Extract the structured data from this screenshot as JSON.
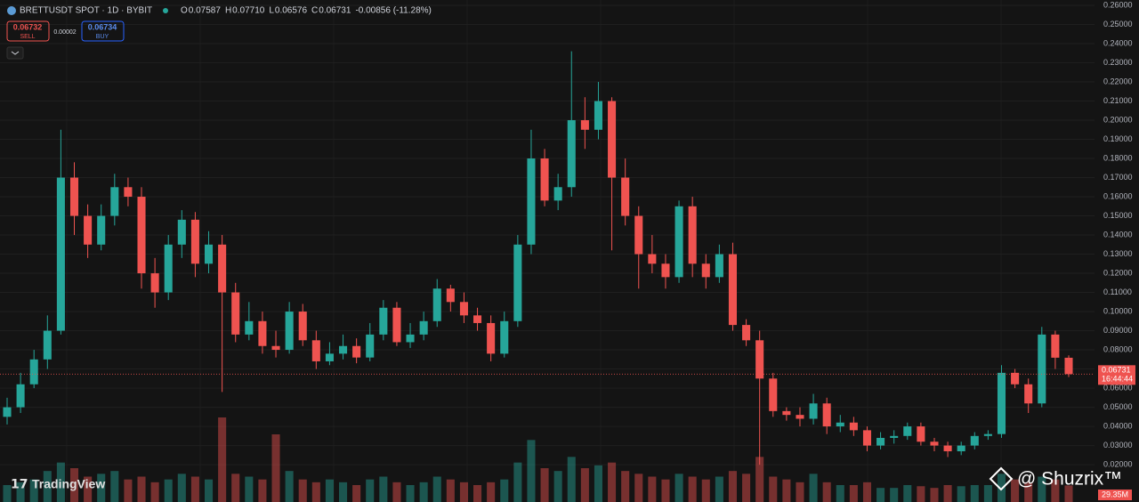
{
  "header": {
    "symbol": "BRETTUSDT SPOT · 1D · BYBIT",
    "ohlc": [
      {
        "k": "O",
        "v": "0.07587"
      },
      {
        "k": "H",
        "v": "0.07710"
      },
      {
        "k": "L",
        "v": "0.06576"
      },
      {
        "k": "C",
        "v": "0.06731"
      }
    ],
    "change": "-0.00856 (-11.28%)"
  },
  "trade": {
    "sell_price": "0.06732",
    "sell": "SELL",
    "spread": "0.00002",
    "buy_price": "0.06734",
    "buy": "BUY"
  },
  "countdown": "16:44:44",
  "watermark": "TradingView",
  "credit": "@ Shuzrix™",
  "chart_data": {
    "type": "candlestick",
    "up_color": "#26a69a",
    "down_color": "#ef5350",
    "ylim": [
      0.0005,
      0.2628
    ],
    "yticks": [
      {
        "value": 0.02,
        "label": "0.02000"
      },
      {
        "value": 0.03,
        "label": "0.03000"
      },
      {
        "value": 0.04,
        "label": "0.04000"
      },
      {
        "value": 0.05,
        "label": "0.05000"
      },
      {
        "value": 0.06,
        "label": "0.06000"
      },
      {
        "value": 0.07,
        "label": "0.07000"
      },
      {
        "value": 0.08,
        "label": "0.08000"
      },
      {
        "value": 0.09,
        "label": "0.09000"
      },
      {
        "value": 0.1,
        "label": "0.10000"
      },
      {
        "value": 0.11,
        "label": "0.11000"
      },
      {
        "value": 0.12,
        "label": "0.12000"
      },
      {
        "value": 0.13,
        "label": "0.13000"
      },
      {
        "value": 0.14,
        "label": "0.14000"
      },
      {
        "value": 0.15,
        "label": "0.15000"
      },
      {
        "value": 0.16,
        "label": "0.16000"
      },
      {
        "value": 0.17,
        "label": "0.17000"
      },
      {
        "value": 0.18,
        "label": "0.18000"
      },
      {
        "value": 0.19,
        "label": "0.19000"
      },
      {
        "value": 0.2,
        "label": "0.20000"
      },
      {
        "value": 0.21,
        "label": "0.21000"
      },
      {
        "value": 0.22,
        "label": "0.22000"
      },
      {
        "value": 0.23,
        "label": "0.23000"
      },
      {
        "value": 0.24,
        "label": "0.24000"
      },
      {
        "value": 0.25,
        "label": "0.25000"
      },
      {
        "value": 0.26,
        "label": "0.26000"
      }
    ],
    "grid": true,
    "open": [
      0.045,
      0.05,
      0.062,
      0.075,
      0.09,
      0.17,
      0.15,
      0.135,
      0.15,
      0.165,
      0.16,
      0.12,
      0.11,
      0.135,
      0.148,
      0.125,
      0.135,
      0.11,
      0.088,
      0.095,
      0.082,
      0.08,
      0.1,
      0.085,
      0.074,
      0.078,
      0.082,
      0.076,
      0.088,
      0.102,
      0.084,
      0.088,
      0.095,
      0.112,
      0.105,
      0.098,
      0.094,
      0.078,
      0.095,
      0.135,
      0.18,
      0.158,
      0.165,
      0.2,
      0.195,
      0.21,
      0.17,
      0.15,
      0.13,
      0.125,
      0.118,
      0.155,
      0.125,
      0.118,
      0.13,
      0.093,
      0.085,
      0.065,
      0.048,
      0.046,
      0.044,
      0.052,
      0.04,
      0.042,
      0.038,
      0.03,
      0.034,
      0.035,
      0.04,
      0.032,
      0.03,
      0.027,
      0.03,
      0.035,
      0.036,
      0.068,
      0.062,
      0.052,
      0.088,
      0.07587
    ],
    "high": [
      0.055,
      0.068,
      0.08,
      0.098,
      0.195,
      0.178,
      0.156,
      0.156,
      0.172,
      0.17,
      0.165,
      0.128,
      0.14,
      0.153,
      0.152,
      0.142,
      0.14,
      0.115,
      0.105,
      0.1,
      0.09,
      0.105,
      0.104,
      0.09,
      0.084,
      0.088,
      0.086,
      0.094,
      0.106,
      0.105,
      0.094,
      0.1,
      0.117,
      0.114,
      0.11,
      0.102,
      0.098,
      0.1,
      0.14,
      0.195,
      0.185,
      0.172,
      0.236,
      0.212,
      0.22,
      0.212,
      0.18,
      0.155,
      0.14,
      0.13,
      0.158,
      0.16,
      0.13,
      0.135,
      0.136,
      0.096,
      0.09,
      0.068,
      0.05,
      0.05,
      0.057,
      0.055,
      0.046,
      0.045,
      0.04,
      0.037,
      0.038,
      0.042,
      0.042,
      0.034,
      0.032,
      0.032,
      0.037,
      0.038,
      0.072,
      0.07,
      0.065,
      0.092,
      0.09,
      0.0771
    ],
    "low": [
      0.041,
      0.047,
      0.06,
      0.07,
      0.088,
      0.14,
      0.128,
      0.132,
      0.145,
      0.155,
      0.112,
      0.102,
      0.106,
      0.128,
      0.118,
      0.12,
      0.058,
      0.084,
      0.085,
      0.078,
      0.076,
      0.078,
      0.082,
      0.07,
      0.072,
      0.075,
      0.073,
      0.074,
      0.085,
      0.082,
      0.081,
      0.085,
      0.092,
      0.1,
      0.094,
      0.09,
      0.074,
      0.076,
      0.092,
      0.13,
      0.155,
      0.153,
      0.16,
      0.185,
      0.19,
      0.132,
      0.145,
      0.112,
      0.12,
      0.112,
      0.115,
      0.118,
      0.112,
      0.115,
      0.09,
      0.082,
      0.02,
      0.045,
      0.043,
      0.04,
      0.041,
      0.036,
      0.037,
      0.035,
      0.027,
      0.028,
      0.031,
      0.033,
      0.03,
      0.027,
      0.024,
      0.025,
      0.028,
      0.033,
      0.034,
      0.06,
      0.047,
      0.05,
      0.07,
      0.06576
    ],
    "close": [
      0.05,
      0.062,
      0.075,
      0.09,
      0.17,
      0.15,
      0.135,
      0.15,
      0.165,
      0.16,
      0.12,
      0.11,
      0.135,
      0.148,
      0.125,
      0.135,
      0.11,
      0.088,
      0.095,
      0.082,
      0.08,
      0.1,
      0.085,
      0.074,
      0.078,
      0.082,
      0.076,
      0.088,
      0.102,
      0.084,
      0.088,
      0.095,
      0.112,
      0.105,
      0.098,
      0.094,
      0.078,
      0.095,
      0.135,
      0.18,
      0.158,
      0.165,
      0.2,
      0.195,
      0.21,
      0.17,
      0.15,
      0.13,
      0.125,
      0.118,
      0.155,
      0.125,
      0.118,
      0.13,
      0.093,
      0.085,
      0.065,
      0.048,
      0.046,
      0.044,
      0.052,
      0.04,
      0.042,
      0.038,
      0.03,
      0.034,
      0.035,
      0.04,
      0.032,
      0.03,
      0.027,
      0.03,
      0.035,
      0.036,
      0.068,
      0.062,
      0.052,
      0.088,
      0.0759,
      0.06731
    ],
    "volume": [
      30,
      35,
      40,
      55,
      70,
      60,
      45,
      50,
      55,
      40,
      45,
      35,
      40,
      50,
      45,
      40,
      150,
      50,
      45,
      40,
      120,
      55,
      40,
      35,
      40,
      35,
      30,
      40,
      45,
      35,
      30,
      35,
      45,
      40,
      35,
      30,
      35,
      40,
      70,
      110,
      60,
      55,
      80,
      60,
      65,
      70,
      55,
      50,
      45,
      40,
      50,
      45,
      40,
      45,
      55,
      50,
      80,
      45,
      40,
      35,
      50,
      35,
      30,
      30,
      35,
      25,
      25,
      30,
      28,
      25,
      30,
      28,
      30,
      30,
      50,
      40,
      35,
      45,
      40,
      29.35
    ],
    "last_volume_label": "29.35M"
  }
}
